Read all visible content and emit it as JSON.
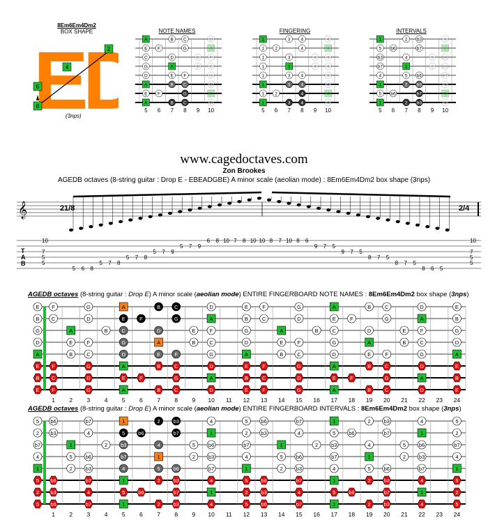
{
  "box_shape": {
    "name": "8Em6Em4Dm2",
    "label": "BOX SHAPE",
    "letters": "ED",
    "nps": "(3nps)",
    "markers": [
      "2",
      "4",
      "6",
      "8"
    ],
    "accent": "#ff8000",
    "green": "#22bb33"
  },
  "mini_diagrams": [
    {
      "title": "NOTE NAMES"
    },
    {
      "title": "FINGERING"
    },
    {
      "title": "INTERVALS"
    }
  ],
  "mini_frets": [
    "5",
    "6",
    "7",
    "8",
    "9",
    "10"
  ],
  "site": "www.cagedoctaves.com",
  "author": "Zon Brookes",
  "subtitle": "AGEDB octaves (8-string guitar : Drop E - EBEADGBE) A minor scale (aeolian mode) : 8Em6Em4Dm2 box shape (3nps)",
  "notation": {
    "time_signature_start": "21/8",
    "time_signature_end": "2/4",
    "tab_label": "T\nA\nB",
    "tab_row1": [
      "5",
      "6",
      "8",
      "5",
      "7",
      "8",
      "5",
      "7",
      "8",
      "5",
      "7",
      "9",
      "5",
      "7",
      "9",
      "6",
      "8",
      "10",
      "7",
      "8",
      "10",
      "10",
      "8",
      "7",
      "10",
      "8",
      "6",
      "9",
      "7",
      "5",
      "9",
      "7",
      "5",
      "8",
      "7",
      "5",
      "8",
      "7",
      "5",
      "8",
      "6",
      "5"
    ]
  },
  "board1": {
    "title_italic": "AGEDB octaves",
    "title_rest_1": " (8-string guitar : ",
    "title_drop": "Drop E",
    "title_rest_2": ") A minor scale (",
    "title_mode": "aeolian mode",
    "title_rest_3": ") ENTIRE FINGERBOARD NOTE NAMES : ",
    "title_shape": "8Em6Em4Dm2",
    "title_rest_4": " box shape (",
    "title_nps": "3nps",
    "title_end": ")"
  },
  "board2": {
    "title_italic": "AGEDB octaves",
    "title_rest_1": " (8-string guitar : ",
    "title_drop": "Drop E",
    "title_rest_2": ") A minor scale (",
    "title_mode": "aeolian mode",
    "title_rest_3": ") ENTIRE FINGERBOARD INTERVALS : ",
    "title_shape": "8Em6Em4Dm2",
    "title_rest_4": " box shape (",
    "title_nps": "3nps",
    "title_end": ")"
  },
  "fret_numbers": [
    "1",
    "2",
    "3",
    "4",
    "5",
    "6",
    "7",
    "8",
    "9",
    "10",
    "11",
    "12",
    "13",
    "14",
    "15",
    "16",
    "17",
    "18",
    "19",
    "20",
    "21",
    "22",
    "23",
    "24"
  ],
  "strings_open": [
    "E",
    "B",
    "G",
    "D",
    "A",
    "E",
    "B",
    "E"
  ],
  "colors": {
    "root_green": "#22bb33",
    "orange": "#f08020",
    "red": "#dd1111",
    "black": "#111111",
    "grey": "#666666"
  }
}
